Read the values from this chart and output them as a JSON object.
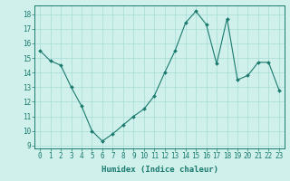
{
  "x": [
    0,
    1,
    2,
    3,
    4,
    5,
    6,
    7,
    8,
    9,
    10,
    11,
    12,
    13,
    14,
    15,
    16,
    17,
    18,
    19,
    20,
    21,
    22,
    23
  ],
  "y": [
    15.5,
    14.8,
    14.5,
    13.0,
    11.7,
    10.0,
    9.3,
    9.8,
    10.4,
    11.0,
    11.5,
    12.4,
    14.0,
    15.5,
    17.4,
    18.2,
    17.3,
    14.6,
    17.7,
    13.5,
    13.8,
    14.7,
    14.7,
    12.8
  ],
  "line_color": "#1a7a6e",
  "marker": "D",
  "marker_size": 2,
  "bg_color": "#cff0eb",
  "grid_color": "#a8ddd8",
  "xlabel": "Humidex (Indice chaleur)",
  "xlim": [
    -0.5,
    23.5
  ],
  "ylim": [
    8.8,
    18.6
  ],
  "yticks": [
    9,
    10,
    11,
    12,
    13,
    14,
    15,
    16,
    17,
    18
  ],
  "xticks": [
    0,
    1,
    2,
    3,
    4,
    5,
    6,
    7,
    8,
    9,
    10,
    11,
    12,
    13,
    14,
    15,
    16,
    17,
    18,
    19,
    20,
    21,
    22,
    23
  ],
  "tick_label_fontsize": 5.5,
  "xlabel_fontsize": 6.5
}
